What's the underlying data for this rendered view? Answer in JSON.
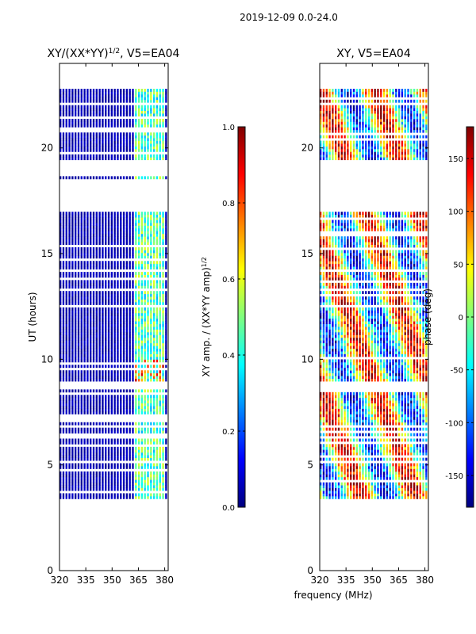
{
  "suptitle": "2019-12-09 0.0-24.0",
  "xlabel_shared": "frequency (MHz)",
  "colors": {
    "jet": [
      "#00007f",
      "#0000ff",
      "#007fff",
      "#00ffff",
      "#7fff7f",
      "#ffff00",
      "#ff7f00",
      "#ff0000",
      "#7f0000"
    ],
    "axis": "#000000",
    "background": "#ffffff"
  },
  "chart_data": [
    {
      "type": "heatmap",
      "title": "XY/(XX*YY)",
      "title_sup": "1/2",
      "title_suffix": ", V5=EA04",
      "xlabel": "",
      "ylabel": "UT (hours)",
      "xlim": [
        320,
        382
      ],
      "ylim": [
        0,
        24
      ],
      "xticks": [
        320,
        335,
        350,
        365,
        380
      ],
      "yticks": [
        0,
        5,
        10,
        15,
        20
      ],
      "data_time_range": [
        3.4,
        22.8
      ],
      "hot_band_mhz": [
        362,
        380
      ],
      "colorbar": {
        "label": "XY amp. / (XX*YY amp)",
        "label_sup": "1/2",
        "range": [
          0.0,
          1.0
        ],
        "ticks": [
          "0.0",
          "0.2",
          "0.4",
          "0.6",
          "0.8",
          "1.0"
        ],
        "tick_values": [
          0.0,
          0.2,
          0.4,
          0.6,
          0.8,
          1.0
        ]
      }
    },
    {
      "type": "heatmap",
      "title": "XY, V5=EA04",
      "xlabel": "frequency (MHz)",
      "ylabel": "",
      "xlim": [
        320,
        382
      ],
      "ylim": [
        0,
        24
      ],
      "xticks": [
        320,
        335,
        350,
        365,
        380
      ],
      "yticks": [
        0,
        5,
        10,
        15,
        20
      ],
      "data_time_range": [
        3.4,
        22.8
      ],
      "colorbar": {
        "label": "phase (deg)",
        "range": [
          -180,
          180
        ],
        "ticks": [
          "-150",
          "-100",
          "-50",
          "0",
          "50",
          "100",
          "150"
        ],
        "tick_values": [
          -150,
          -100,
          -50,
          0,
          50,
          100,
          150
        ]
      }
    }
  ]
}
